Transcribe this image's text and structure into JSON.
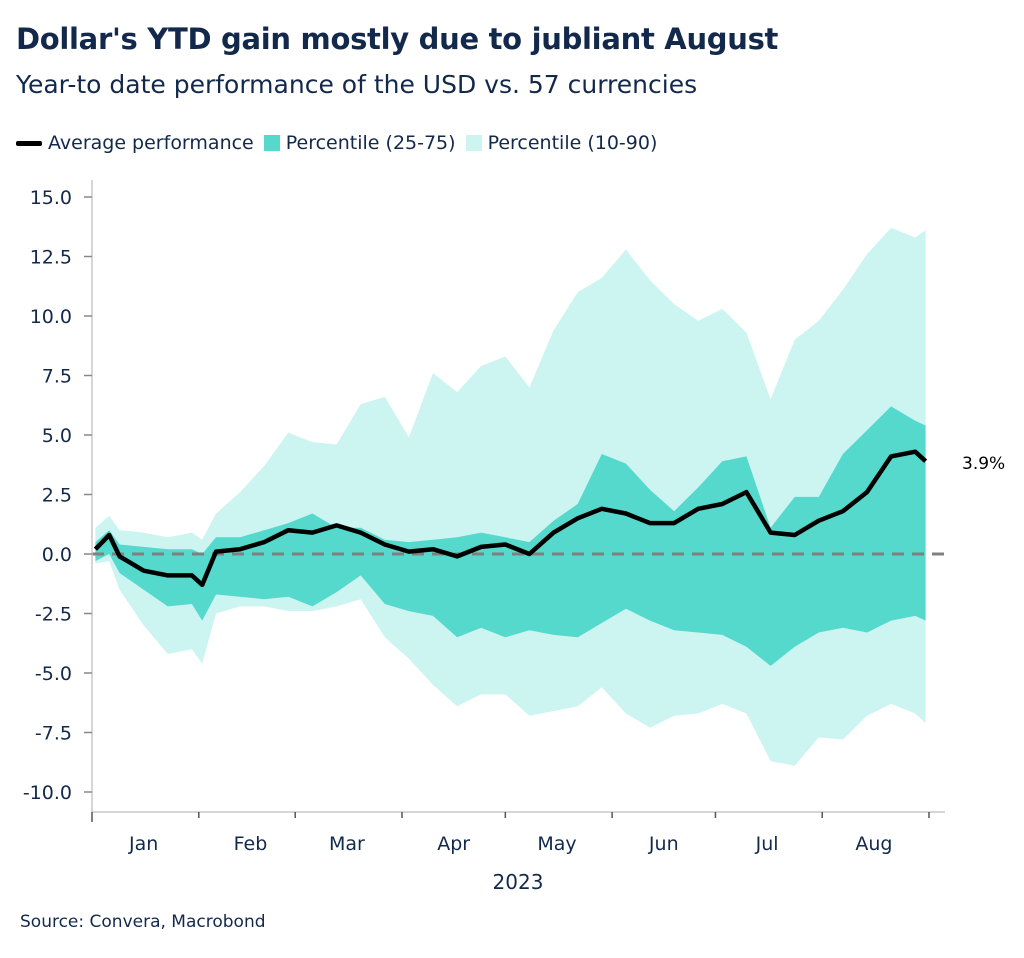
{
  "title": "Dollar's YTD gain mostly due to jubliant August",
  "subtitle": "Year-to date performance of the USD vs. 57 currencies",
  "source": "Source: Convera, Macrobond",
  "colors": {
    "average": "#000000",
    "p25_75": "#55d9cc",
    "p10_90": "#ccf4f0",
    "text": "#13294b",
    "zero_line": "#808080"
  },
  "chart_data": {
    "type": "area",
    "title": "Dollar's YTD gain mostly due to jubliant August",
    "subtitle": "Year-to date performance of the USD vs. 57 currencies",
    "xlabel": "2023",
    "ylabel": "",
    "ylim": [
      -10,
      15
    ],
    "yticks": [
      "15.0",
      "12.5",
      "10.0",
      "7.5",
      "5.0",
      "2.5",
      "0.0",
      "-2.5",
      "-5.0",
      "-7.5",
      "-10.0"
    ],
    "ytick_values": [
      15,
      12.5,
      10,
      7.5,
      5,
      2.5,
      0,
      -2.5,
      -5,
      -7.5,
      -10
    ],
    "xlim": [
      "2023-01-01",
      "2023-09-01"
    ],
    "xticks": [
      "Jan",
      "Feb",
      "Mar",
      "Apr",
      "May",
      "Jun",
      "Jul",
      "Aug"
    ],
    "grid": false,
    "legend_position": "top",
    "legend": [
      "Average performance",
      "Percentile (25-75)",
      "Percentile (10-90)"
    ],
    "end_label": "3.9%",
    "reference_line": 0,
    "x": [
      "2023-01-02",
      "2023-01-06",
      "2023-01-09",
      "2023-01-16",
      "2023-01-23",
      "2023-01-30",
      "2023-02-02",
      "2023-02-06",
      "2023-02-13",
      "2023-02-20",
      "2023-02-27",
      "2023-03-06",
      "2023-03-13",
      "2023-03-20",
      "2023-03-27",
      "2023-04-03",
      "2023-04-10",
      "2023-04-17",
      "2023-04-24",
      "2023-05-01",
      "2023-05-08",
      "2023-05-15",
      "2023-05-22",
      "2023-05-29",
      "2023-06-05",
      "2023-06-12",
      "2023-06-19",
      "2023-06-26",
      "2023-07-03",
      "2023-07-10",
      "2023-07-17",
      "2023-07-24",
      "2023-07-31",
      "2023-08-07",
      "2023-08-14",
      "2023-08-21",
      "2023-08-28",
      "2023-08-31"
    ],
    "series": [
      {
        "name": "Average performance",
        "values": [
          0.2,
          0.8,
          -0.1,
          -0.7,
          -0.9,
          -0.9,
          -1.3,
          0.1,
          0.2,
          0.5,
          1.0,
          0.9,
          1.2,
          0.9,
          0.4,
          0.1,
          0.2,
          -0.1,
          0.3,
          0.4,
          0.0,
          0.9,
          1.5,
          1.9,
          1.7,
          1.3,
          1.3,
          1.9,
          2.1,
          2.6,
          0.9,
          0.8,
          1.4,
          1.8,
          2.6,
          4.1,
          4.3,
          3.9
        ]
      },
      {
        "name": "Percentile (25-75)",
        "lower": [
          -0.3,
          0.0,
          -0.8,
          -1.5,
          -2.2,
          -2.1,
          -2.8,
          -1.7,
          -1.8,
          -1.9,
          -1.8,
          -2.2,
          -1.6,
          -0.9,
          -2.1,
          -2.4,
          -2.6,
          -3.5,
          -3.1,
          -3.5,
          -3.2,
          -3.4,
          -3.5,
          -2.9,
          -2.3,
          -2.8,
          -3.2,
          -3.3,
          -3.4,
          -3.9,
          -4.7,
          -3.9,
          -3.3,
          -3.1,
          -3.3,
          -2.8,
          -2.6,
          -2.8
        ],
        "upper": [
          0.5,
          1.0,
          0.4,
          0.3,
          0.2,
          0.2,
          0.0,
          0.7,
          0.7,
          1.0,
          1.3,
          1.7,
          1.1,
          1.1,
          0.6,
          0.5,
          0.6,
          0.7,
          0.9,
          0.7,
          0.5,
          1.4,
          2.1,
          4.2,
          3.8,
          2.7,
          1.8,
          2.8,
          3.9,
          4.1,
          1.1,
          2.4,
          2.4,
          4.2,
          5.2,
          6.2,
          5.6,
          5.4
        ]
      },
      {
        "name": "Percentile (10-90)",
        "lower": [
          -0.4,
          -0.3,
          -1.5,
          -3.0,
          -4.2,
          -4.0,
          -4.6,
          -2.5,
          -2.2,
          -2.2,
          -2.4,
          -2.4,
          -2.2,
          -1.9,
          -3.5,
          -4.4,
          -5.5,
          -6.4,
          -5.9,
          -5.9,
          -6.8,
          -6.6,
          -6.4,
          -5.6,
          -6.7,
          -7.3,
          -6.8,
          -6.7,
          -6.3,
          -6.7,
          -8.7,
          -8.9,
          -7.7,
          -7.8,
          -6.8,
          -6.3,
          -6.7,
          -7.1
        ],
        "upper": [
          1.1,
          1.6,
          1.0,
          0.9,
          0.7,
          0.9,
          0.6,
          1.7,
          2.6,
          3.7,
          5.1,
          4.7,
          4.6,
          6.3,
          6.6,
          4.9,
          7.6,
          6.8,
          7.9,
          8.3,
          7.0,
          9.4,
          11.0,
          11.6,
          12.8,
          11.5,
          10.5,
          9.8,
          10.3,
          9.3,
          6.5,
          9.0,
          9.8,
          11.1,
          12.6,
          13.7,
          13.3,
          13.6
        ]
      }
    ]
  }
}
